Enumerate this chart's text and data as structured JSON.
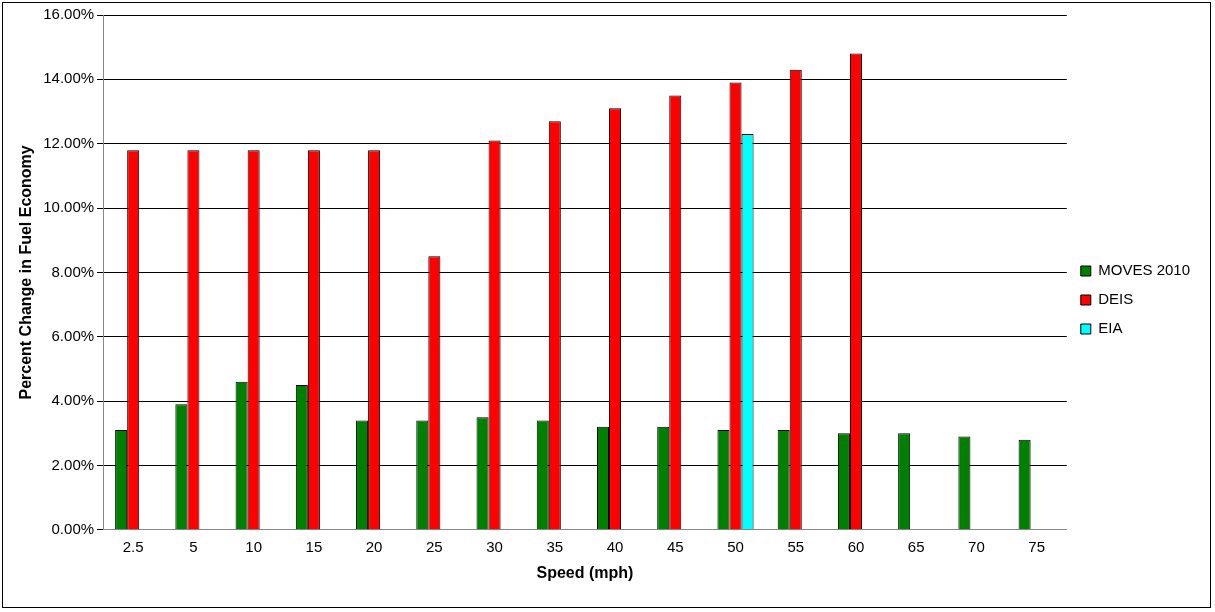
{
  "chart_data": {
    "type": "bar",
    "xlabel": "Speed (mph)",
    "ylabel": "Percent Change in Fuel Economy",
    "categories": [
      "2.5",
      "5",
      "10",
      "15",
      "20",
      "25",
      "30",
      "35",
      "40",
      "45",
      "50",
      "55",
      "60",
      "65",
      "70",
      "75"
    ],
    "series": [
      {
        "name": "MOVES 2010",
        "color": "#008000",
        "values": [
          3.1,
          3.9,
          4.6,
          4.5,
          3.4,
          3.4,
          3.5,
          3.4,
          3.2,
          3.2,
          3.1,
          3.1,
          3.0,
          3.0,
          2.9,
          2.8
        ]
      },
      {
        "name": "DEIS",
        "color": "#ff0000",
        "values": [
          11.8,
          11.8,
          11.8,
          11.8,
          11.8,
          8.5,
          12.1,
          12.7,
          13.1,
          13.5,
          13.9,
          14.3,
          14.8,
          null,
          null,
          null
        ]
      },
      {
        "name": "EIA",
        "color": "#00ffff",
        "values": [
          null,
          null,
          null,
          null,
          null,
          null,
          null,
          null,
          null,
          null,
          12.3,
          null,
          null,
          null,
          null,
          null
        ]
      }
    ],
    "ylim": [
      0,
      16
    ],
    "yticks": [
      {
        "value": 0,
        "label": "0.00%"
      },
      {
        "value": 2,
        "label": "2.00%"
      },
      {
        "value": 4,
        "label": "4.00%"
      },
      {
        "value": 6,
        "label": "6.00%"
      },
      {
        "value": 8,
        "label": "8.00%"
      },
      {
        "value": 10,
        "label": "10.00%"
      },
      {
        "value": 12,
        "label": "12.00%"
      },
      {
        "value": 14,
        "label": "14.00%"
      },
      {
        "value": 16,
        "label": "16.00%"
      }
    ],
    "grid": "y",
    "legend": "right"
  }
}
